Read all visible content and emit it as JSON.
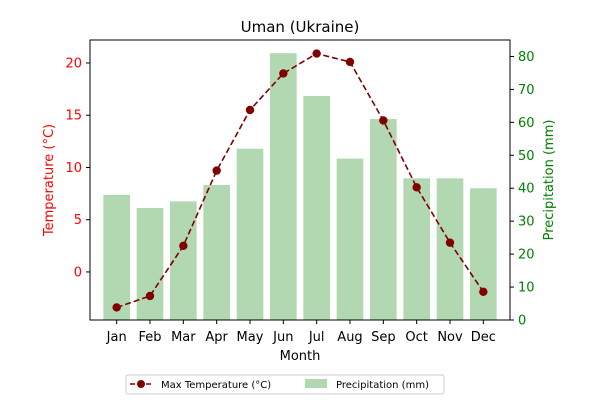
{
  "chart_data": {
    "type": "bar+line",
    "title": "Uman (Ukraine)",
    "xlabel": "Month",
    "categories": [
      "Jan",
      "Feb",
      "Mar",
      "Apr",
      "May",
      "Jun",
      "Jul",
      "Aug",
      "Sep",
      "Oct",
      "Nov",
      "Dec"
    ],
    "y_left": {
      "label": "Temperature (°C)",
      "ylim": [
        -4.6,
        22.2
      ],
      "ticks": [
        0,
        5,
        10,
        15,
        20
      ],
      "color": "#ff0000"
    },
    "y_right": {
      "label": "Precipitation (mm)",
      "ylim": [
        0,
        85
      ],
      "ticks": [
        0,
        10,
        20,
        30,
        40,
        50,
        60,
        70,
        80
      ],
      "color": "#008000"
    },
    "series": [
      {
        "name": "Max Temperature (°C)",
        "kind": "line",
        "axis": "left",
        "color": "#800000",
        "style": "dashed",
        "marker": "circle",
        "values": [
          -3.4,
          -2.3,
          2.5,
          9.7,
          15.5,
          19.0,
          20.9,
          20.1,
          14.5,
          8.1,
          2.8,
          -1.9
        ]
      },
      {
        "name": "Precipitation (mm)",
        "kind": "bar",
        "axis": "right",
        "color": "#b2d8b2",
        "values": [
          38,
          34,
          36,
          41,
          52,
          81,
          68,
          49,
          61,
          43,
          43,
          40
        ]
      }
    ],
    "legend": {
      "placement": "bottom-center",
      "columns": 2
    },
    "grid": false
  }
}
